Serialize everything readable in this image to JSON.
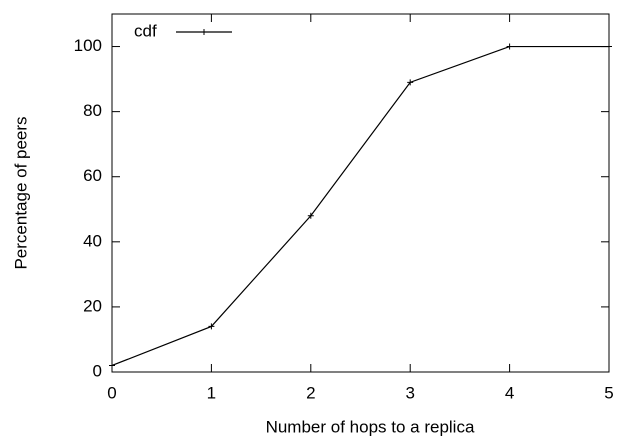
{
  "chart_data": {
    "type": "line",
    "x_label": "Number of hops to a replica",
    "y_label": "Percentage of peers",
    "x": [
      0,
      1,
      2,
      3,
      4,
      5
    ],
    "series": [
      {
        "name": "cdf",
        "color": "#000000",
        "values": [
          2,
          14,
          48,
          89,
          100,
          100
        ]
      }
    ],
    "xlim": [
      0,
      5
    ],
    "xticks": [
      0,
      1,
      2,
      3,
      4,
      5
    ],
    "ylim": [
      0,
      110
    ],
    "yticks": [
      0,
      20,
      40,
      60,
      80,
      100
    ],
    "legend": "top-left",
    "grid": false
  }
}
